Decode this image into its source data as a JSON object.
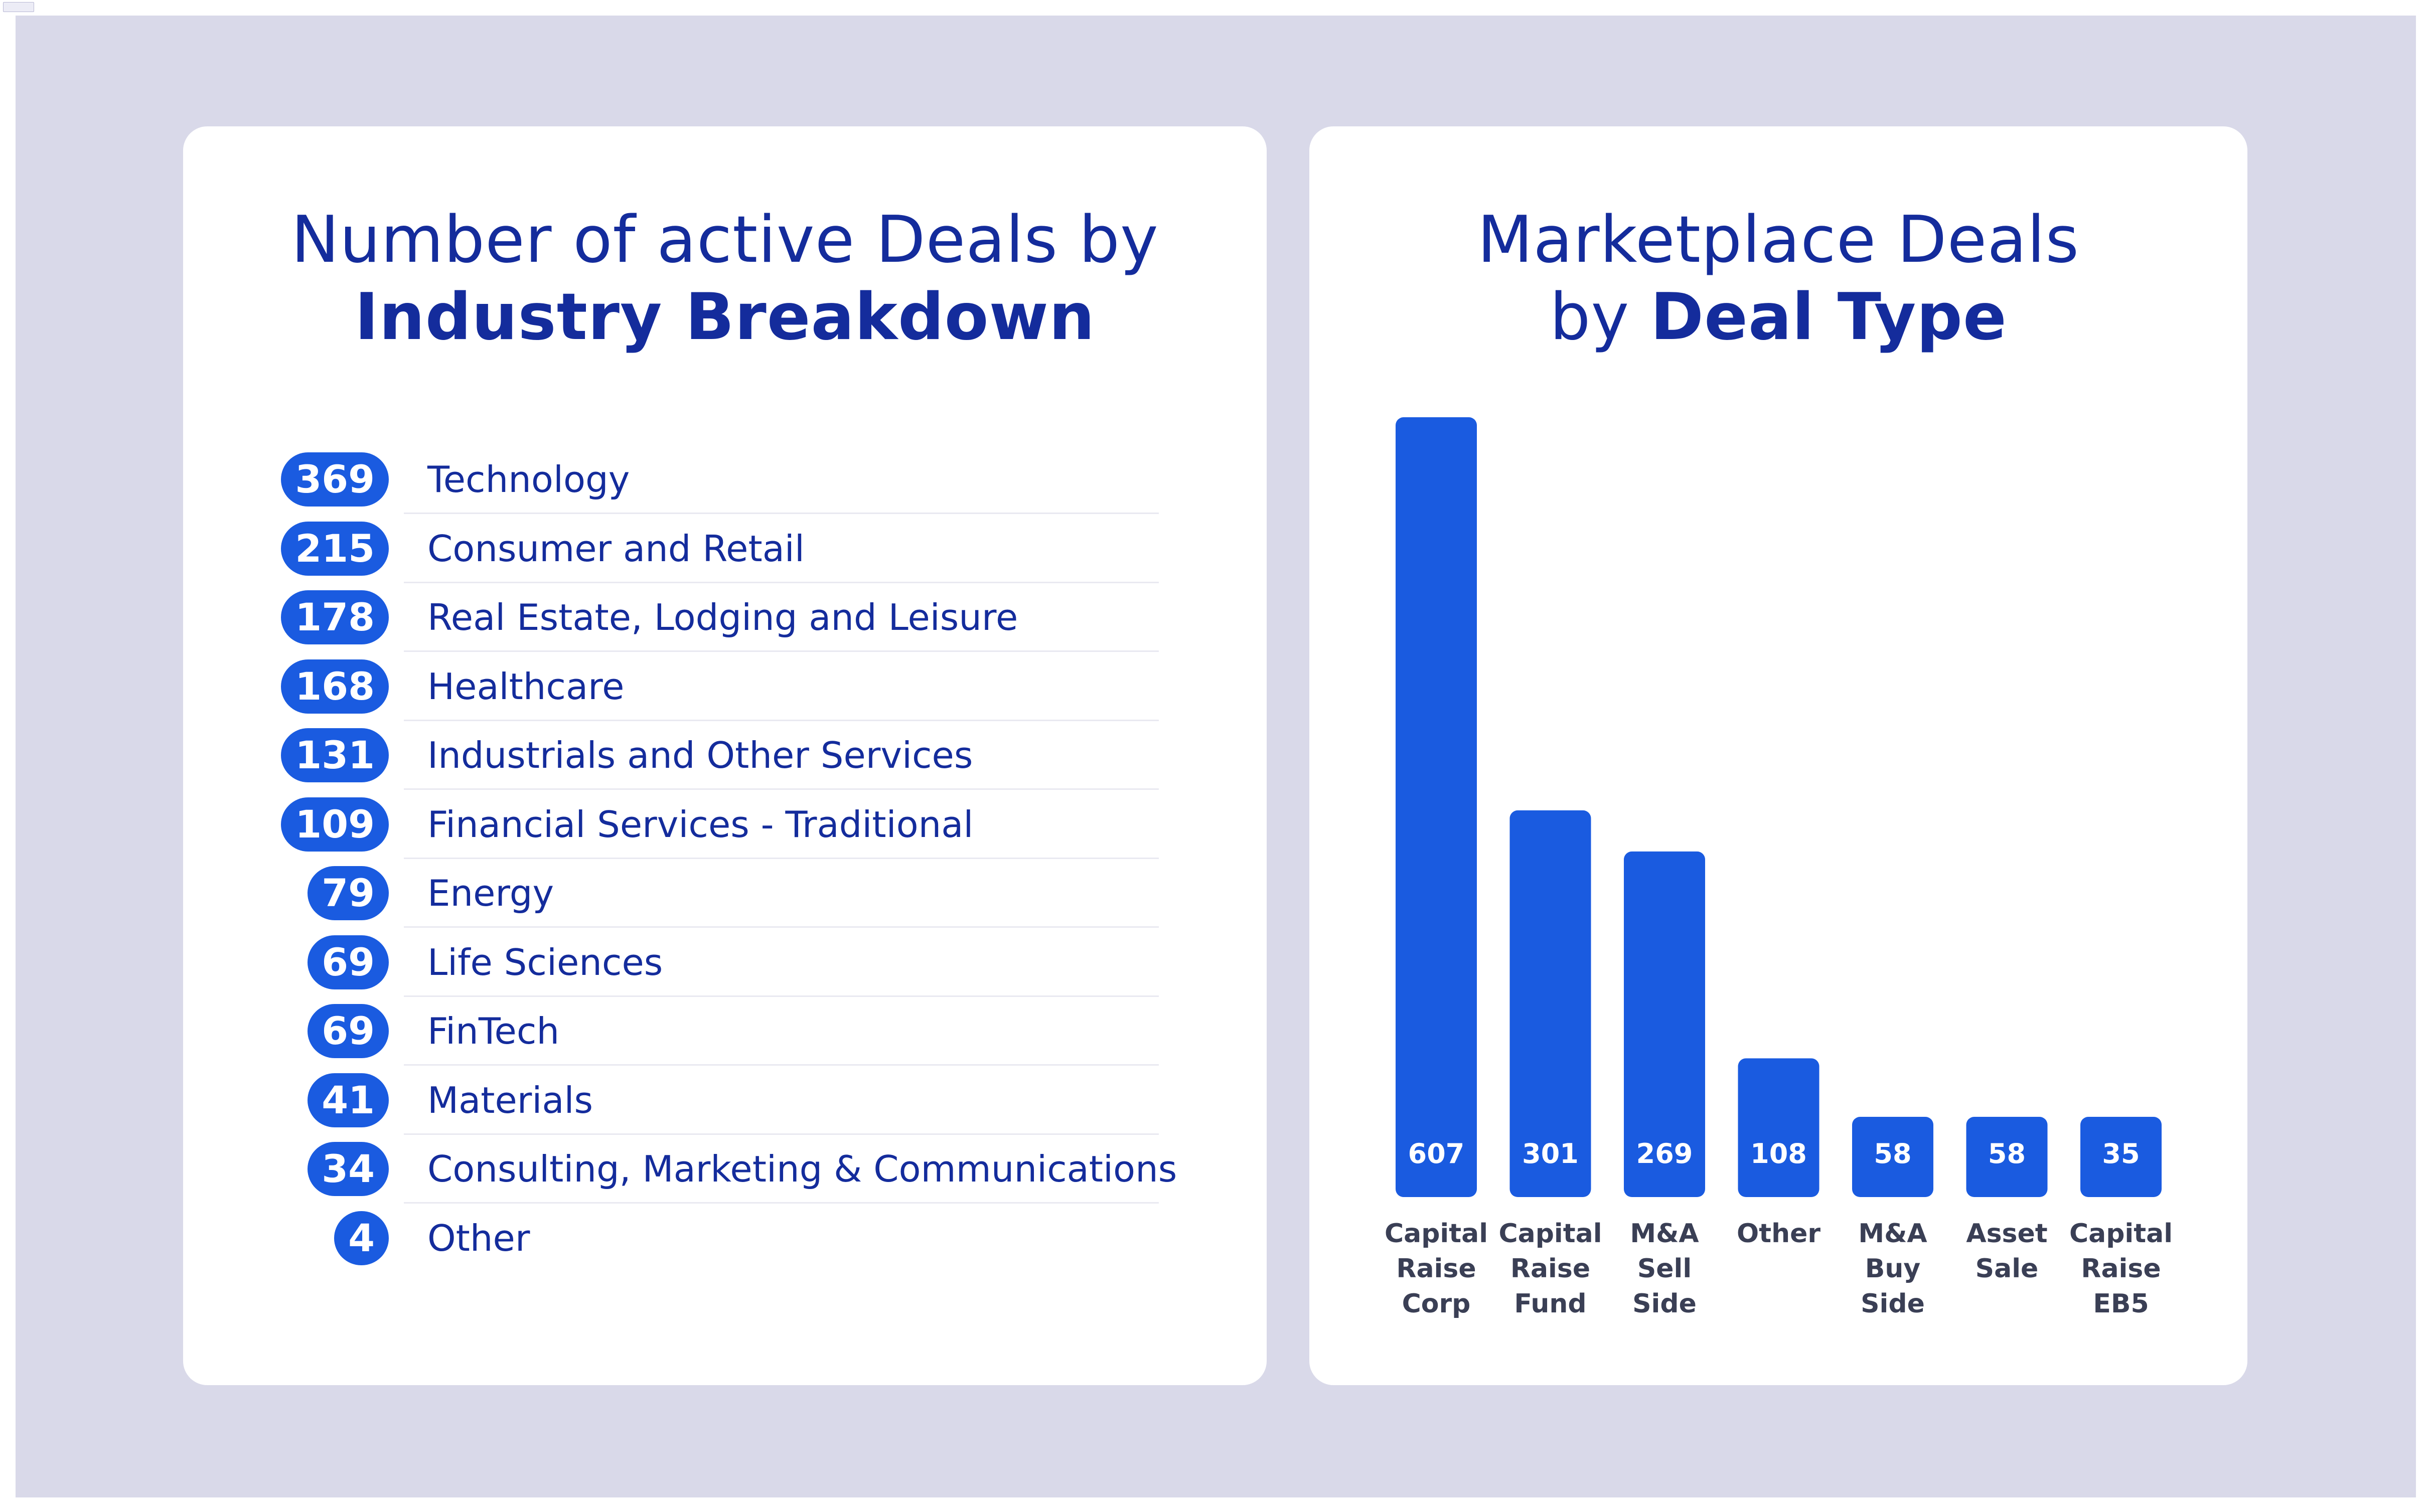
{
  "colors": {
    "accent": "#1a5be0",
    "title": "#142c9c",
    "background": "#d9d9e9",
    "card": "#ffffff"
  },
  "industry": {
    "title_line1": "Number of active Deals by",
    "title_line2": "Industry Breakdown",
    "items": [
      {
        "count": "369",
        "label": "Technology"
      },
      {
        "count": "215",
        "label": "Consumer and Retail"
      },
      {
        "count": "178",
        "label": "Real Estate, Lodging and Leisure"
      },
      {
        "count": "168",
        "label": "Healthcare"
      },
      {
        "count": "131",
        "label": "Industrials and Other Services"
      },
      {
        "count": "109",
        "label": "Financial Services - Traditional"
      },
      {
        "count": "79",
        "label": "Energy"
      },
      {
        "count": "69",
        "label": "Life Sciences"
      },
      {
        "count": "69",
        "label": "FinTech"
      },
      {
        "count": "41",
        "label": "Materials"
      },
      {
        "count": "34",
        "label": "Consulting, Marketing & Communications"
      },
      {
        "count": "4",
        "label": "Other"
      }
    ]
  },
  "deal_type": {
    "title_line1": "Marketplace Deals",
    "title_line2_prefix": "by",
    "title_line2_bold": "Deal Type"
  },
  "chart_data": {
    "type": "bar",
    "title": "Marketplace Deals by Deal Type",
    "categories": [
      [
        "Capital",
        "Raise",
        "Corp"
      ],
      [
        "Capital",
        "Raise",
        "Fund"
      ],
      [
        "M&A",
        "Sell",
        "Side"
      ],
      [
        "Other"
      ],
      [
        "M&A",
        "Buy",
        "Side"
      ],
      [
        "Asset",
        "Sale"
      ],
      [
        "Capital",
        "Raise",
        "EB5"
      ]
    ],
    "values": [
      607,
      301,
      269,
      108,
      58,
      58,
      35
    ],
    "data_labels": [
      "607",
      "301",
      "269",
      "108",
      "58",
      "58",
      "35"
    ],
    "grid": false,
    "legend": "none"
  }
}
